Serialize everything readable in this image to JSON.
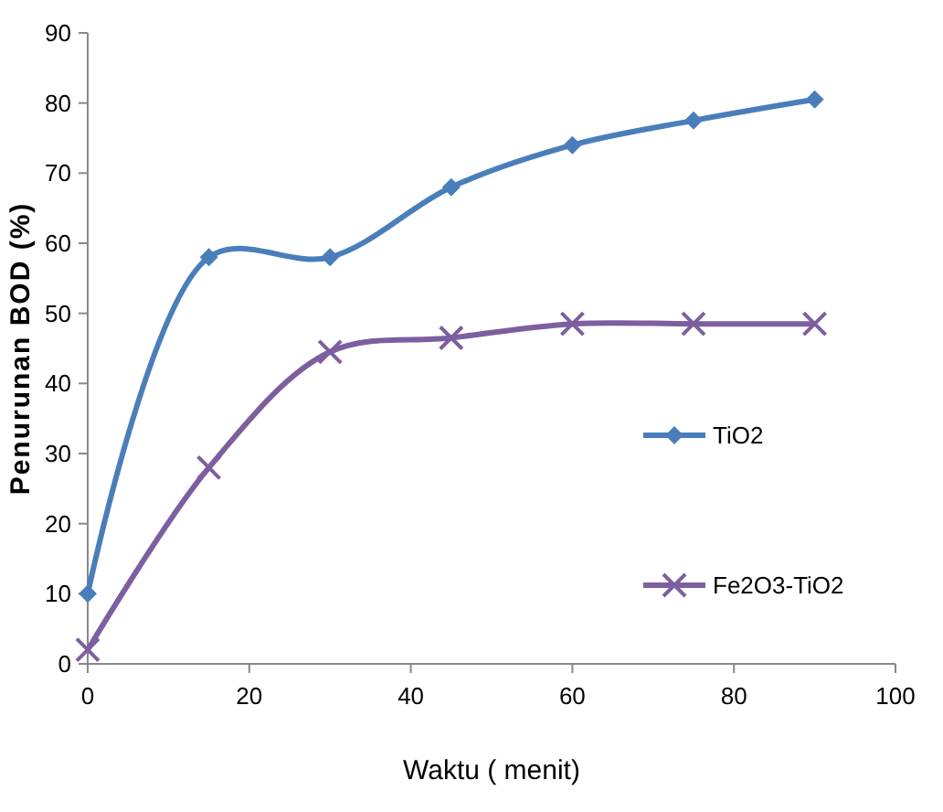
{
  "chart_data": {
    "type": "line",
    "xlabel": "Waktu ( menit)",
    "ylabel": "Penurunan BOD (%)",
    "xlim": [
      0,
      100
    ],
    "xticks": [
      0,
      20,
      40,
      60,
      80,
      100
    ],
    "ylim": [
      0,
      90
    ],
    "yticks": [
      0,
      10,
      20,
      30,
      40,
      50,
      60,
      70,
      80,
      90
    ],
    "grid": false,
    "legend": "right",
    "series": [
      {
        "name": "TiO2",
        "color": "#4a7ebb",
        "marker": "diamond",
        "x": [
          0,
          15,
          30,
          45,
          60,
          75,
          90
        ],
        "values": [
          10,
          58,
          58,
          68,
          74,
          77.5,
          80.5
        ]
      },
      {
        "name": "Fe2O3-TiO2",
        "color": "#7d5fa0",
        "marker": "cross",
        "x": [
          0,
          15,
          30,
          45,
          60,
          75,
          90
        ],
        "values": [
          2,
          28,
          44.5,
          46.5,
          48.5,
          48.5,
          48.5
        ]
      }
    ]
  }
}
